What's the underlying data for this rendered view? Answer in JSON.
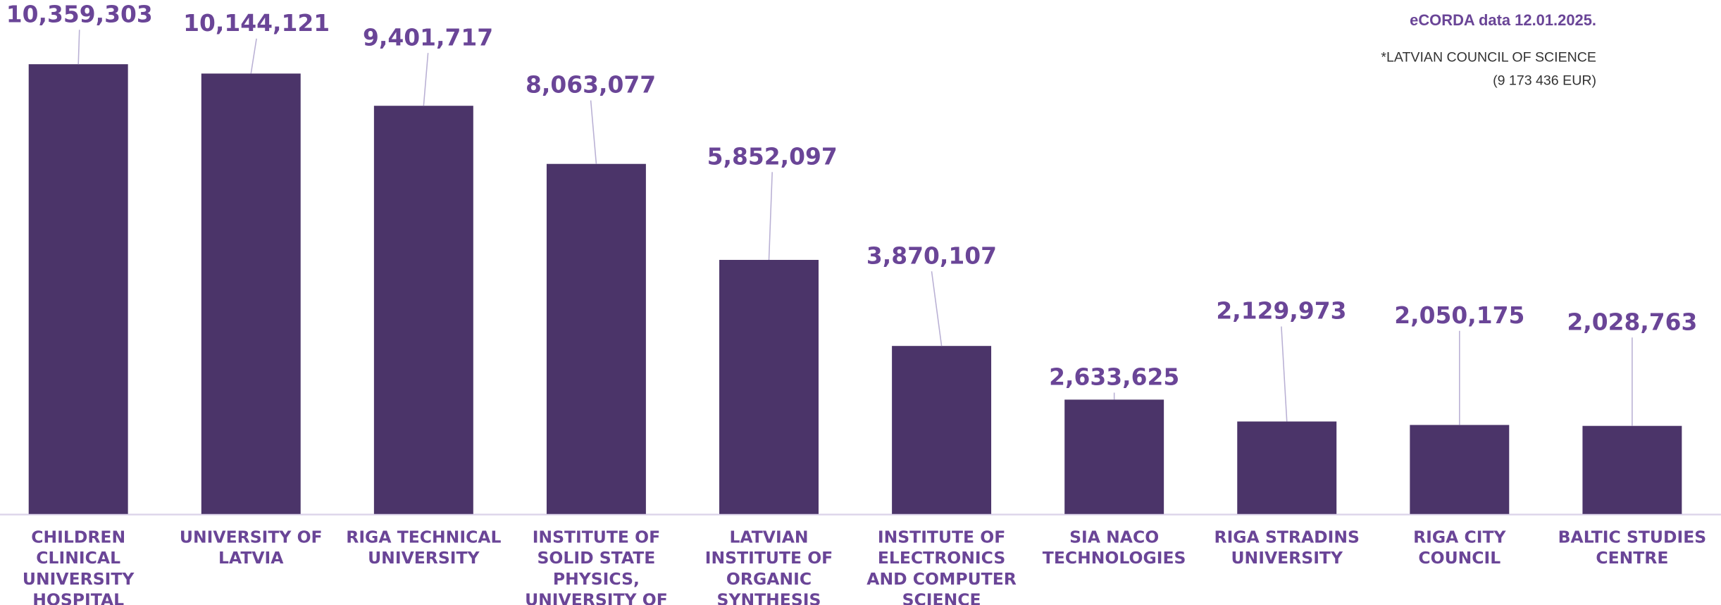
{
  "chart_data": {
    "type": "bar",
    "categories": [
      "CHILDREN CLINICAL UNIVERSITY HOSPITAL",
      "UNIVERSITY OF LATVIA",
      "RIGA TECHNICAL UNIVERSITY",
      "INSTITUTE OF SOLID STATE PHYSICS, UNIVERSITY OF",
      "LATVIAN INSTITUTE OF ORGANIC SYNTHESIS",
      "INSTITUTE OF ELECTRONICS AND COMPUTER SCIENCE",
      "SIA NACO TECHNOLOGIES",
      "RIGA STRADINS UNIVERSITY",
      "RIGA CITY COUNCIL",
      "BALTIC STUDIES CENTRE"
    ],
    "values": [
      10359303,
      10144121,
      9401717,
      8063077,
      5852097,
      3870107,
      2633625,
      2129973,
      2050175,
      2028763
    ],
    "value_labels": [
      "10,359,303",
      "10,144,121",
      "9,401,717",
      "8,063,077",
      "5,852,097",
      "3,870,107",
      "2,633,625",
      "2,129,973",
      "2,050,175",
      "2,028,763"
    ],
    "color": "#4b3469",
    "ylim": [
      0,
      11000000
    ],
    "annotations": [
      "eCORDA data 12.01.2025.",
      "*LATVIAN COUNCIL OF SCIENCE",
      "(9 173 436 EUR)"
    ]
  }
}
